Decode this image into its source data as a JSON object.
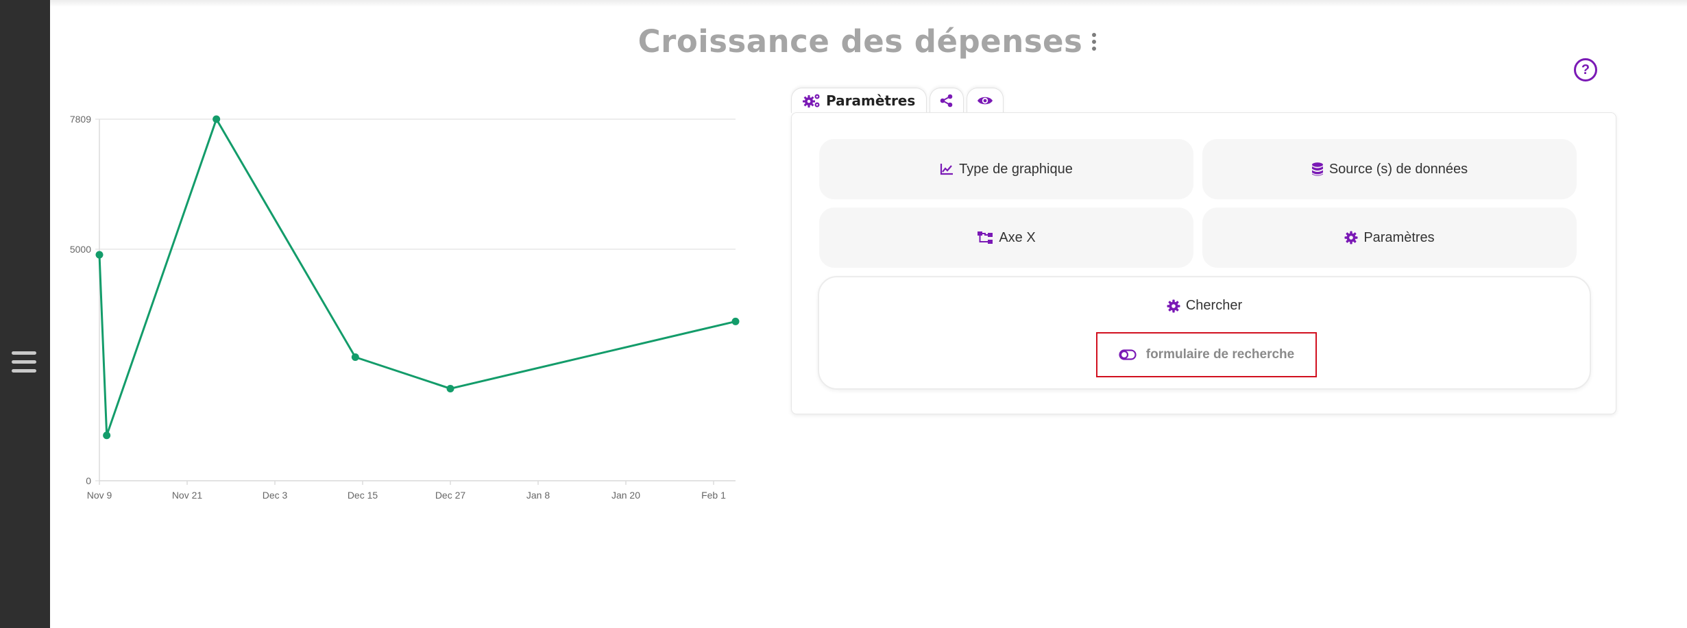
{
  "page": {
    "title": "Croissance des dépenses"
  },
  "help": {
    "glyph": "?"
  },
  "tabs": [
    {
      "label": "Paramètres",
      "icon": "gears-icon"
    },
    {
      "label": "",
      "icon": "share-icon"
    },
    {
      "label": "",
      "icon": "eye-icon"
    }
  ],
  "panel": {
    "chart_type_label": "Type de graphique",
    "data_source_label": "Source (s) de données",
    "x_axis_label": "Axe X",
    "settings_label": "Paramètres",
    "search_label": "Chercher",
    "search_form_label": "formulaire de recherche"
  },
  "colors": {
    "accent": "#7a19b5",
    "line": "#139c6a",
    "highlight_border": "#d10f1e"
  },
  "chart_data": {
    "type": "line",
    "title": "",
    "xlabel": "",
    "ylabel": "",
    "ylim": [
      0,
      7809
    ],
    "y_ticks": [
      "0",
      "5000",
      "7809"
    ],
    "x_ticks": [
      "Nov 9",
      "Nov 21",
      "Dec 3",
      "Dec 15",
      "Dec 27",
      "Jan 8",
      "Jan 20",
      "Feb 1"
    ],
    "x_range": [
      "Nov 9",
      "Feb 4"
    ],
    "grid": true,
    "series": [
      {
        "points": [
          {
            "x": "Nov 9",
            "y": 4880
          },
          {
            "x": "Nov 10",
            "y": 980
          },
          {
            "x": "Nov 25",
            "y": 7809
          },
          {
            "x": "Dec 14",
            "y": 2670
          },
          {
            "x": "Dec 27",
            "y": 1990
          },
          {
            "x": "Feb 4",
            "y": 3440
          }
        ]
      }
    ]
  }
}
